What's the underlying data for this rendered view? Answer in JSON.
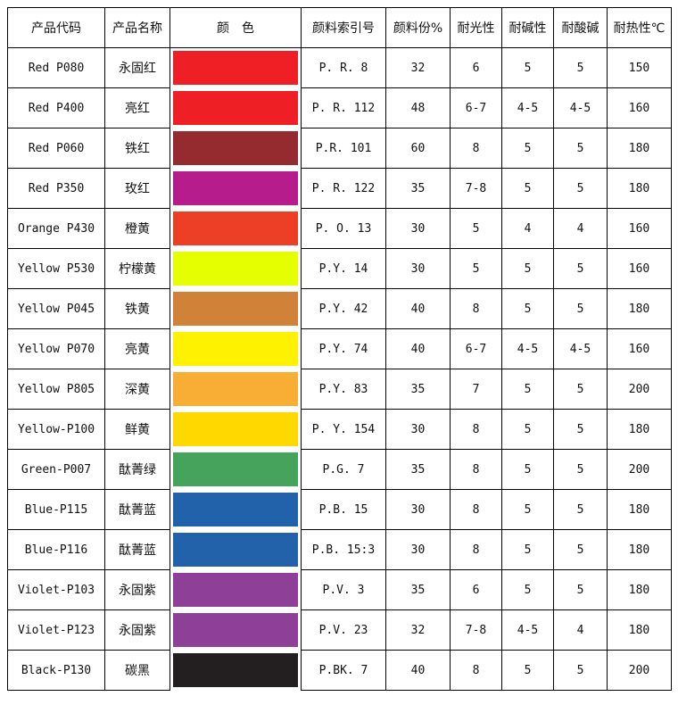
{
  "headers": [
    "产品代码",
    "产品名称",
    "颜　色",
    "颜料索引号",
    "颜料份%",
    "耐光性",
    "耐碱性",
    "耐酸碱",
    "耐热性℃"
  ],
  "rows": [
    {
      "code": "Red P080",
      "name": "永固红",
      "color": "#ee1f25",
      "index": "P. R. 8",
      "parts": "32",
      "light": "6",
      "alkali": "5",
      "acid": "5",
      "heat": "150"
    },
    {
      "code": "Red P400",
      "name": "亮红",
      "color": "#ee1f25",
      "index": "P. R. 112",
      "parts": "48",
      "light": "6-7",
      "alkali": "4-5",
      "acid": "4-5",
      "heat": "160"
    },
    {
      "code": "Red P060",
      "name": "铁红",
      "color": "#952a2f",
      "index": "P.R. 101",
      "parts": "60",
      "light": "8",
      "alkali": "5",
      "acid": "5",
      "heat": "180"
    },
    {
      "code": "Red P350",
      "name": "玫红",
      "color": "#b71c8c",
      "index": "P. R. 122",
      "parts": "35",
      "light": "7-8",
      "alkali": "5",
      "acid": "5",
      "heat": "180"
    },
    {
      "code": "Orange P430",
      "name": "橙黄",
      "color": "#ec3f26",
      "index": "P. O. 13",
      "parts": "30",
      "light": "5",
      "alkali": "4",
      "acid": "4",
      "heat": "160"
    },
    {
      "code": "Yellow P530",
      "name": "柠檬黄",
      "color": "#e5ff00",
      "index": "P.Y. 14",
      "parts": "30",
      "light": "5",
      "alkali": "5",
      "acid": "5",
      "heat": "160"
    },
    {
      "code": "Yellow P045",
      "name": "铁黄",
      "color": "#cf8238",
      "index": "P.Y. 42",
      "parts": "40",
      "light": "8",
      "alkali": "5",
      "acid": "5",
      "heat": "180"
    },
    {
      "code": "Yellow P070",
      "name": "亮黄",
      "color": "#fff200",
      "index": "P.Y. 74",
      "parts": "40",
      "light": "6-7",
      "alkali": "4-5",
      "acid": "4-5",
      "heat": "160"
    },
    {
      "code": "Yellow P805",
      "name": "深黄",
      "color": "#f8ae35",
      "index": "P.Y. 83",
      "parts": "35",
      "light": "7",
      "alkali": "5",
      "acid": "5",
      "heat": "200"
    },
    {
      "code": "Yellow-P100",
      "name": "鲜黄",
      "color": "#ffd800",
      "index": "P. Y. 154",
      "parts": "30",
      "light": "8",
      "alkali": "5",
      "acid": "5",
      "heat": "180"
    },
    {
      "code": "Green-P007",
      "name": "酞菁绿",
      "color": "#46a35b",
      "index": "P.G. 7",
      "parts": "35",
      "light": "8",
      "alkali": "5",
      "acid": "5",
      "heat": "200"
    },
    {
      "code": "Blue-P115",
      "name": "酞菁蓝",
      "color": "#2162aa",
      "index": "P.B. 15",
      "parts": "30",
      "light": "8",
      "alkali": "5",
      "acid": "5",
      "heat": "180"
    },
    {
      "code": "Blue-P116",
      "name": "酞菁蓝",
      "color": "#2162aa",
      "index": "P.B. 15:3",
      "parts": "30",
      "light": "8",
      "alkali": "5",
      "acid": "5",
      "heat": "180"
    },
    {
      "code": "Violet-P103",
      "name": "永固紫",
      "color": "#8e3f98",
      "index": "P.V. 3",
      "parts": "35",
      "light": "6",
      "alkali": "5",
      "acid": "5",
      "heat": "180"
    },
    {
      "code": "Violet-P123",
      "name": "永固紫",
      "color": "#8e3f98",
      "index": "P.V. 23",
      "parts": "32",
      "light": "7-8",
      "alkali": "4-5",
      "acid": "4",
      "heat": "180"
    },
    {
      "code": "Black-P130",
      "name": "碳黑",
      "color": "#231f20",
      "index": "P.BK. 7",
      "parts": "40",
      "light": "8",
      "alkali": "5",
      "acid": "5",
      "heat": "200"
    }
  ]
}
